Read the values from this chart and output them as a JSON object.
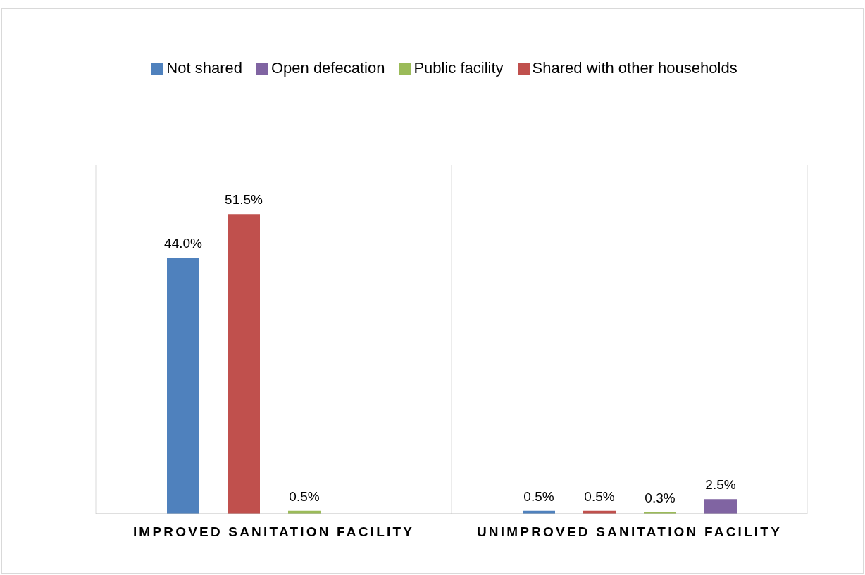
{
  "chart_data": {
    "type": "bar",
    "categories": [
      "IMPROVED SANITATION FACILITY",
      "UNIMPROVED SANITATION FACILITY"
    ],
    "series": [
      {
        "name": "Not shared",
        "color": "#4f81bd",
        "values": [
          44.0,
          0.5
        ],
        "value_labels": [
          "44.0%",
          "0.5%"
        ]
      },
      {
        "name": "Shared with other households",
        "color": "#c0504d",
        "values": [
          51.5,
          0.5
        ],
        "value_labels": [
          "51.5%",
          "0.5%"
        ]
      },
      {
        "name": "Public facility",
        "color": "#9bbb59",
        "values": [
          0.5,
          0.3
        ],
        "value_labels": [
          "0.5%",
          "0.3%"
        ]
      },
      {
        "name": "Open defecation",
        "color": "#8064a2",
        "values": [
          null,
          2.5
        ],
        "value_labels": [
          null,
          "2.5%"
        ]
      }
    ],
    "legend": "top",
    "grid": "x",
    "tick_labels": "x"
  }
}
